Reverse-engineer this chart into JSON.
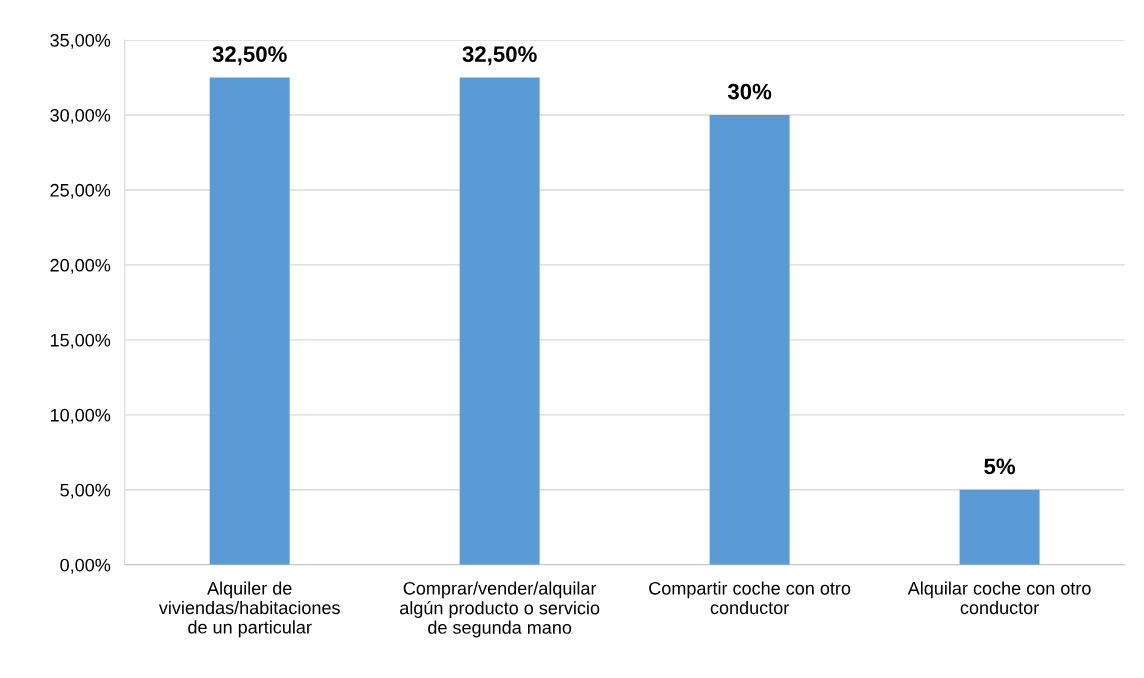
{
  "chart_data": {
    "type": "bar",
    "categories": [
      "Alquiler de\nviviendas/habitaciones\nde un particular",
      "Comprar/vender/alquilar\nalgún producto o servicio\nde segunda mano",
      "Compartir coche con otro\nconductor",
      "Alquilar coche con otro\nconductor"
    ],
    "values": [
      32.5,
      32.5,
      30,
      5
    ],
    "value_labels": [
      "32,50%",
      "32,50%",
      "30%",
      "5%"
    ],
    "color": "#5b9bd5",
    "ylim": [
      0,
      35
    ],
    "yticks": [
      {
        "value": 0,
        "label": "0,00%"
      },
      {
        "value": 5,
        "label": "5,00%"
      },
      {
        "value": 10,
        "label": "10,00%"
      },
      {
        "value": 15,
        "label": "15,00%"
      },
      {
        "value": 20,
        "label": "20,00%"
      },
      {
        "value": 25,
        "label": "25,00%"
      },
      {
        "value": 30,
        "label": "30,00%"
      },
      {
        "value": 35,
        "label": "35,00%"
      }
    ],
    "grid": "y"
  }
}
